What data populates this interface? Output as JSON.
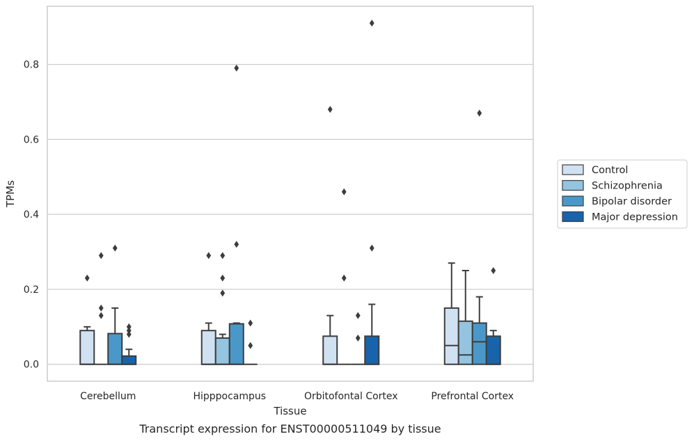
{
  "chart_data": {
    "type": "boxplot",
    "title": "",
    "caption": "Transcript expression for ENST00000511049 by tissue",
    "xlabel": "Tissue",
    "ylabel": "TPMs",
    "ylim": [
      -0.045,
      0.955
    ],
    "yticks": [
      0.0,
      0.2,
      0.4,
      0.6,
      0.8
    ],
    "ytick_labels": [
      "0.0",
      "0.2",
      "0.4",
      "0.6",
      "0.8"
    ],
    "grid": "horizontal",
    "legend_position": "right",
    "categories": [
      "Cerebellum",
      "Hipppocampus",
      "Orbitofontal Cortex",
      "Prefrontal Cortex"
    ],
    "series": [
      {
        "name": "Control",
        "color": "#d0e1f2",
        "boxes": [
          {
            "q1": 0.0,
            "median": 0.0,
            "q3": 0.09,
            "whisker_low": 0.0,
            "whisker_high": 0.1,
            "outliers": [
              0.23
            ]
          },
          {
            "q1": 0.0,
            "median": 0.0,
            "q3": 0.09,
            "whisker_low": 0.0,
            "whisker_high": 0.11,
            "outliers": [
              0.29
            ]
          },
          {
            "q1": 0.0,
            "median": 0.0,
            "q3": 0.075,
            "whisker_low": 0.0,
            "whisker_high": 0.13,
            "outliers": [
              0.68
            ]
          },
          {
            "q1": 0.0,
            "median": 0.05,
            "q3": 0.15,
            "whisker_low": 0.0,
            "whisker_high": 0.27,
            "outliers": []
          }
        ]
      },
      {
        "name": "Schizophrenia",
        "color": "#94c4df",
        "boxes": [
          {
            "q1": 0.0,
            "median": 0.0,
            "q3": 0.0,
            "whisker_low": 0.0,
            "whisker_high": 0.0,
            "outliers": [
              0.13,
              0.15,
              0.29
            ]
          },
          {
            "q1": 0.0,
            "median": 0.0,
            "q3": 0.07,
            "whisker_low": 0.0,
            "whisker_high": 0.08,
            "outliers": [
              0.19,
              0.23,
              0.29
            ]
          },
          {
            "q1": 0.0,
            "median": 0.0,
            "q3": 0.0,
            "whisker_low": 0.0,
            "whisker_high": 0.0,
            "outliers": [
              0.23,
              0.46
            ]
          },
          {
            "q1": 0.0,
            "median": 0.025,
            "q3": 0.115,
            "whisker_low": 0.0,
            "whisker_high": 0.25,
            "outliers": []
          }
        ]
      },
      {
        "name": "Bipolar disorder",
        "color": "#4a98c9",
        "boxes": [
          {
            "q1": 0.0,
            "median": 0.0,
            "q3": 0.082,
            "whisker_low": 0.0,
            "whisker_high": 0.15,
            "outliers": [
              0.31
            ]
          },
          {
            "q1": 0.0,
            "median": 0.0,
            "q3": 0.108,
            "whisker_low": 0.0,
            "whisker_high": 0.11,
            "outliers": [
              0.32,
              0.79
            ]
          },
          {
            "q1": 0.0,
            "median": 0.0,
            "q3": 0.0,
            "whisker_low": 0.0,
            "whisker_high": 0.0,
            "outliers": [
              0.07,
              0.13
            ]
          },
          {
            "q1": 0.0,
            "median": 0.06,
            "q3": 0.11,
            "whisker_low": 0.0,
            "whisker_high": 0.18,
            "outliers": [
              0.67
            ]
          }
        ]
      },
      {
        "name": "Major depression",
        "color": "#1764ab",
        "boxes": [
          {
            "q1": 0.0,
            "median": 0.0,
            "q3": 0.022,
            "whisker_low": 0.0,
            "whisker_high": 0.04,
            "outliers": [
              0.08,
              0.09,
              0.1
            ]
          },
          {
            "q1": 0.0,
            "median": 0.0,
            "q3": 0.0,
            "whisker_low": 0.0,
            "whisker_high": 0.0,
            "outliers": [
              0.05,
              0.11
            ]
          },
          {
            "q1": 0.0,
            "median": 0.0,
            "q3": 0.075,
            "whisker_low": 0.0,
            "whisker_high": 0.16,
            "outliers": [
              0.31,
              0.91
            ]
          },
          {
            "q1": 0.0,
            "median": 0.0,
            "q3": 0.075,
            "whisker_low": 0.0,
            "whisker_high": 0.09,
            "outliers": [
              0.25
            ]
          }
        ]
      }
    ]
  }
}
